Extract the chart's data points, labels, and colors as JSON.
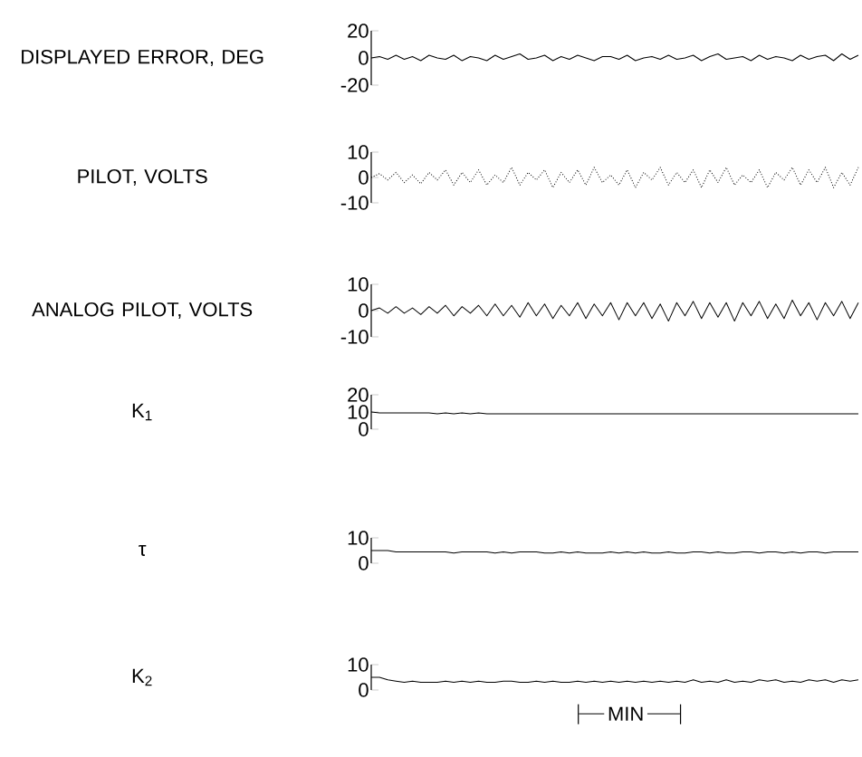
{
  "chart_data": [
    {
      "type": "line",
      "ylabel": "DISPLAYED ERROR, DEG",
      "ylim": [
        -20,
        20
      ],
      "yticks": [
        -20,
        0,
        20
      ],
      "tick_labels": "y",
      "color": "#000000",
      "categories": [
        null,
        null,
        null,
        null,
        null,
        null,
        null,
        null,
        null,
        null,
        null,
        null,
        null,
        null,
        null,
        null,
        null,
        null,
        null,
        null,
        null,
        null,
        null,
        null,
        null,
        null,
        null,
        null,
        null,
        null,
        null,
        null,
        null,
        null,
        null,
        null,
        null,
        null,
        null,
        null,
        null,
        null,
        null,
        null,
        null,
        null,
        null,
        null,
        null,
        null,
        null,
        null,
        null,
        null,
        null,
        null,
        null,
        null,
        null,
        null
      ],
      "values": [
        0,
        1,
        -1,
        2,
        -1,
        1,
        -2,
        2,
        0,
        -1,
        2,
        -2,
        1,
        0,
        -2,
        2,
        -1,
        1,
        3,
        -1,
        0,
        2,
        -2,
        1,
        -1,
        2,
        0,
        -2,
        1,
        1,
        -1,
        2,
        -2,
        0,
        1,
        -1,
        2,
        -1,
        0,
        2,
        -2,
        1,
        3,
        -1,
        0,
        1,
        -2,
        2,
        -1,
        1,
        0,
        -2,
        2,
        -1,
        1,
        2,
        -2,
        3,
        -1,
        2
      ]
    },
    {
      "type": "line",
      "ylabel": "PILOT, VOLTS",
      "ylim": [
        -10,
        10
      ],
      "yticks": [
        -10,
        0,
        10
      ],
      "tick_labels": "y",
      "color": "#000000",
      "line_style": "dotted",
      "categories": [
        null,
        null,
        null,
        null,
        null,
        null,
        null,
        null,
        null,
        null,
        null,
        null,
        null,
        null,
        null,
        null,
        null,
        null,
        null,
        null,
        null,
        null,
        null,
        null,
        null,
        null,
        null,
        null,
        null,
        null,
        null,
        null,
        null,
        null,
        null,
        null,
        null,
        null,
        null,
        null,
        null,
        null,
        null,
        null,
        null,
        null,
        null,
        null,
        null,
        null,
        null,
        null,
        null,
        null,
        null,
        null,
        null,
        null,
        null,
        null
      ],
      "values": [
        0,
        1.5,
        -1,
        2,
        -2,
        1,
        -2.5,
        2,
        -1,
        3,
        -3,
        2,
        -2,
        3,
        -3,
        1,
        -2,
        4,
        -3,
        2,
        -1,
        3,
        -4,
        2,
        -2,
        3,
        -3,
        4,
        -2,
        1,
        -3,
        3,
        -4,
        2,
        -1,
        4,
        -3,
        2,
        -2,
        3,
        -4,
        3,
        -2,
        4,
        -3,
        1,
        -2,
        3,
        -4,
        2,
        -1,
        4,
        -3,
        3,
        -2,
        4,
        -4,
        2,
        -3,
        4
      ]
    },
    {
      "type": "line",
      "ylabel": "ANALOG PILOT, VOLTS",
      "ylim": [
        -10,
        10
      ],
      "yticks": [
        -10,
        0,
        10
      ],
      "tick_labels": "y",
      "color": "#000000",
      "categories": [
        null,
        null,
        null,
        null,
        null,
        null,
        null,
        null,
        null,
        null,
        null,
        null,
        null,
        null,
        null,
        null,
        null,
        null,
        null,
        null,
        null,
        null,
        null,
        null,
        null,
        null,
        null,
        null,
        null,
        null,
        null,
        null,
        null,
        null,
        null,
        null,
        null,
        null,
        null,
        null,
        null,
        null,
        null,
        null,
        null,
        null,
        null,
        null,
        null,
        null,
        null,
        null,
        null,
        null,
        null,
        null,
        null,
        null,
        null,
        null
      ],
      "values": [
        0,
        1,
        -1,
        1.5,
        -1,
        1,
        -1.5,
        1.5,
        -1,
        2,
        -2,
        1.5,
        -1,
        2,
        -2,
        2.5,
        -2,
        2,
        -2.5,
        3,
        -2,
        2.5,
        -3,
        2,
        -2,
        3,
        -3,
        2.5,
        -2,
        3,
        -3.5,
        3,
        -2,
        3,
        -3,
        2.5,
        -4,
        3,
        -2,
        3.5,
        -3,
        3,
        -2.5,
        3,
        -4,
        3,
        -2,
        3.5,
        -3,
        2.5,
        -3,
        4,
        -2,
        3,
        -3.5,
        3,
        -2,
        3.5,
        -3,
        3
      ]
    },
    {
      "type": "line",
      "ylabel": "K$_{1}$",
      "ylim": [
        0,
        20
      ],
      "yticks": [
        0,
        10,
        20
      ],
      "tick_labels": "y",
      "color": "#000000",
      "categories": [
        null,
        null,
        null,
        null,
        null,
        null,
        null,
        null,
        null,
        null,
        null,
        null,
        null,
        null,
        null,
        null,
        null,
        null,
        null,
        null,
        null,
        null,
        null,
        null,
        null,
        null,
        null,
        null,
        null,
        null,
        null,
        null,
        null,
        null,
        null,
        null,
        null,
        null,
        null,
        null,
        null,
        null,
        null,
        null,
        null,
        null,
        null,
        null,
        null,
        null,
        null,
        null,
        null,
        null,
        null,
        null,
        null,
        null,
        null,
        null
      ],
      "values": [
        10,
        9.5,
        9.5,
        9.5,
        9.5,
        9.5,
        9.5,
        9.5,
        9,
        9.5,
        9,
        9.5,
        9,
        9.5,
        9,
        9,
        9,
        9,
        9,
        9,
        9,
        9,
        9,
        9,
        9,
        9,
        9,
        9,
        9,
        9,
        9,
        9,
        9,
        9,
        9,
        9,
        9,
        9,
        9,
        9,
        9,
        9,
        9,
        9,
        9,
        9,
        9,
        9,
        9,
        9,
        9,
        9,
        9,
        9,
        9,
        9,
        9,
        9,
        9,
        9
      ]
    },
    {
      "type": "line",
      "ylabel": "τ",
      "ylim": [
        0,
        10
      ],
      "yticks": [
        0,
        10
      ],
      "tick_labels": "y",
      "color": "#000000",
      "categories": [
        null,
        null,
        null,
        null,
        null,
        null,
        null,
        null,
        null,
        null,
        null,
        null,
        null,
        null,
        null,
        null,
        null,
        null,
        null,
        null,
        null,
        null,
        null,
        null,
        null,
        null,
        null,
        null,
        null,
        null,
        null,
        null,
        null,
        null,
        null,
        null,
        null,
        null,
        null,
        null,
        null,
        null,
        null,
        null,
        null,
        null,
        null,
        null,
        null,
        null,
        null,
        null,
        null,
        null,
        null,
        null,
        null,
        null,
        null,
        null
      ],
      "values": [
        5,
        5,
        5,
        4.5,
        4.5,
        4.5,
        4.5,
        4.5,
        4.5,
        4.5,
        4,
        4.5,
        4.5,
        4.5,
        4.5,
        4,
        4.5,
        4,
        4.5,
        4.5,
        4.5,
        4,
        4,
        4.5,
        4,
        4.5,
        4,
        4,
        4,
        4.5,
        4,
        4.5,
        4,
        4.5,
        4,
        4,
        4.5,
        4,
        4,
        4.5,
        4.5,
        4,
        4.5,
        4,
        4,
        4.5,
        4.5,
        4,
        4.5,
        4.5,
        4,
        4.5,
        4,
        4.5,
        4.5,
        4,
        4.5,
        4.5,
        4.5,
        4.5
      ]
    },
    {
      "type": "line",
      "ylabel": "K$_{2}$",
      "ylim": [
        0,
        10
      ],
      "yticks": [
        0,
        10
      ],
      "tick_labels": "y",
      "color": "#000000",
      "annotations": [
        "MIN"
      ],
      "categories": [
        null,
        null,
        null,
        null,
        null,
        null,
        null,
        null,
        null,
        null,
        null,
        null,
        null,
        null,
        null,
        null,
        null,
        null,
        null,
        null,
        null,
        null,
        null,
        null,
        null,
        null,
        null,
        null,
        null,
        null,
        null,
        null,
        null,
        null,
        null,
        null,
        null,
        null,
        null,
        null,
        null,
        null,
        null,
        null,
        null,
        null,
        null,
        null,
        null,
        null,
        null,
        null,
        null,
        null,
        null,
        null,
        null,
        null,
        null,
        null
      ],
      "values": [
        5,
        5,
        4,
        3.5,
        3,
        3.5,
        3,
        3,
        3,
        3.5,
        3,
        3.5,
        3,
        3.5,
        3,
        3,
        3.5,
        3.5,
        3,
        3,
        3.5,
        3,
        3.5,
        3,
        3,
        3.5,
        3,
        3.5,
        3,
        3.5,
        3,
        3.5,
        3,
        3.5,
        3,
        3.5,
        3,
        3.5,
        3,
        4,
        3,
        3.5,
        3,
        4,
        3,
        3.5,
        3,
        4,
        3.5,
        4,
        3,
        3.5,
        3,
        4,
        3.5,
        4,
        3,
        4,
        3.5,
        4
      ]
    }
  ]
}
